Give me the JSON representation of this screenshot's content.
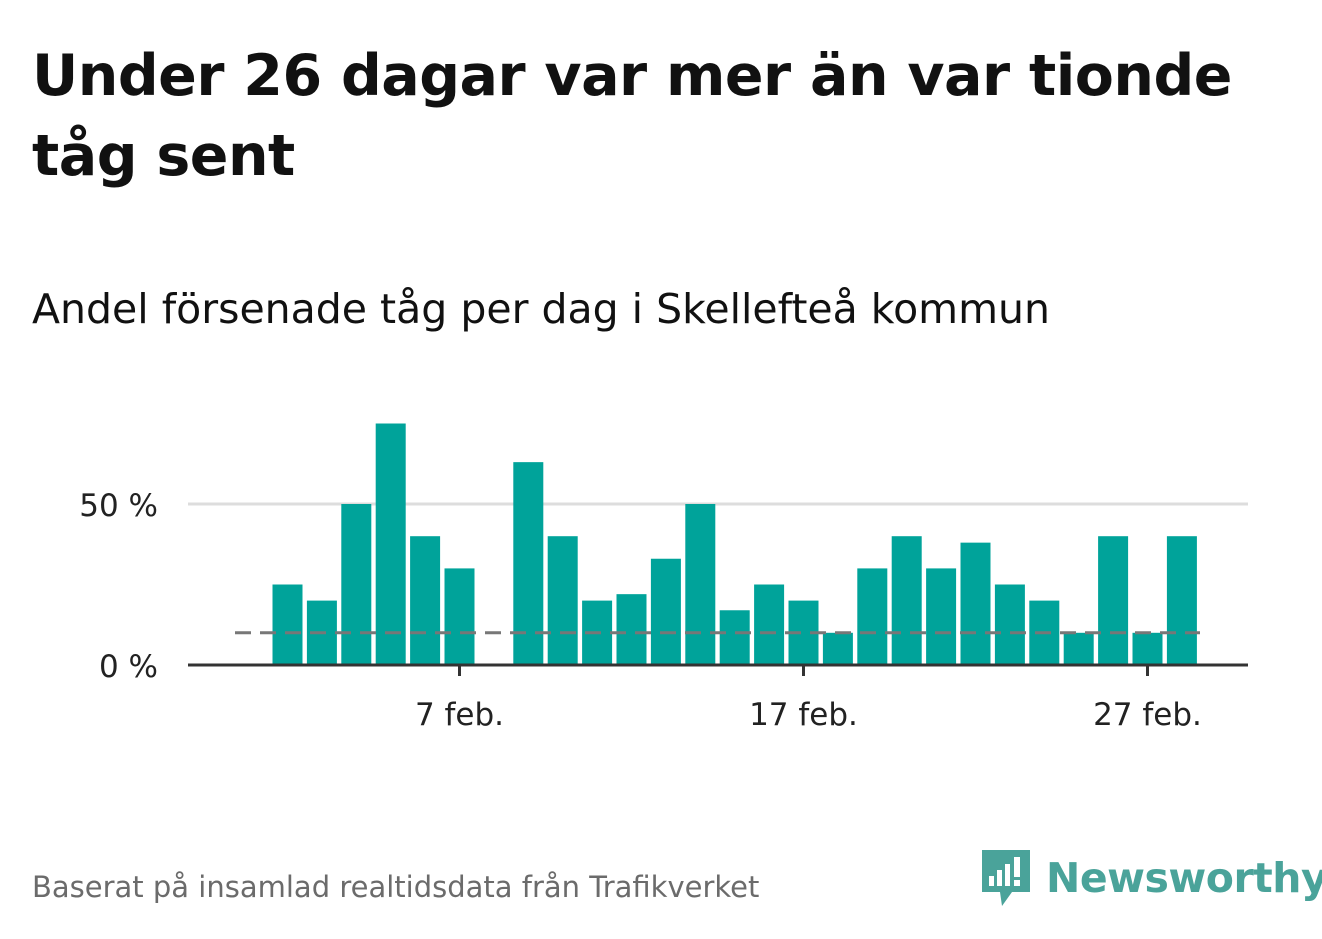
{
  "title": "Under 26 dagar var mer än var tionde tåg sent",
  "footer": "Baserat på insamlad realtidsdata från Trafikverket",
  "brand": {
    "name": "Newsworthy",
    "icon": "newsworthy-logo-icon",
    "color": "#4aa39a"
  },
  "chart_data": {
    "type": "bar",
    "title": "Andel försenade tåg per dag i Skellefteå kommun",
    "xlabel": "",
    "ylabel": "",
    "ylim": [
      0,
      80
    ],
    "yticks": [
      {
        "value": 0,
        "label": "0 %"
      },
      {
        "value": 50,
        "label": "50 %"
      }
    ],
    "xticks": [
      {
        "day": 7,
        "label": "7 feb."
      },
      {
        "day": 17,
        "label": "17 feb."
      },
      {
        "day": 27,
        "label": "27 feb."
      }
    ],
    "categories": [
      "2 feb",
      "3 feb",
      "4 feb",
      "5 feb",
      "6 feb",
      "7 feb",
      "8 feb",
      "9 feb",
      "10 feb",
      "11 feb",
      "12 feb",
      "13 feb",
      "14 feb",
      "15 feb",
      "16 feb",
      "17 feb",
      "18 feb",
      "19 feb",
      "20 feb",
      "21 feb",
      "22 feb",
      "23 feb",
      "24 feb",
      "25 feb",
      "26 feb",
      "27 feb",
      "28 feb"
    ],
    "days": [
      2,
      3,
      4,
      5,
      6,
      7,
      8,
      9,
      10,
      11,
      12,
      13,
      14,
      15,
      16,
      17,
      18,
      19,
      20,
      21,
      22,
      23,
      24,
      25,
      26,
      27,
      28
    ],
    "values": [
      25,
      20,
      50,
      75,
      40,
      30,
      0,
      63,
      40,
      20,
      22,
      33,
      50,
      17,
      25,
      20,
      10,
      30,
      40,
      30,
      38,
      25,
      20,
      10,
      40,
      10,
      40
    ],
    "reference_line": {
      "value": 10,
      "style": "dashed",
      "label": ""
    },
    "bar_color": "#00a39a",
    "reference_color": "#777777",
    "grid": true
  }
}
